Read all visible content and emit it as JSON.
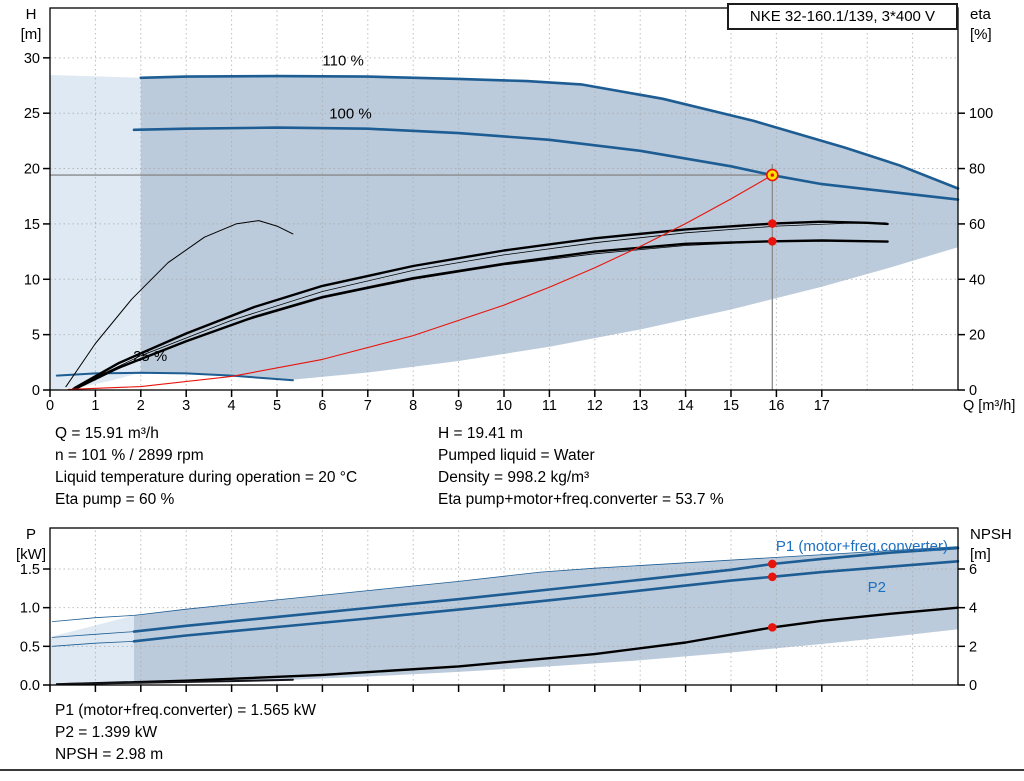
{
  "header": {
    "title_box": "NKE 32-160.1/139, 3*400 V"
  },
  "info_top_left": [
    "Q = 15.91 m³/h",
    "n = 101 % / 2899 rpm",
    "Liquid temperature during operation = 20 °C",
    "Eta pump = 60 %"
  ],
  "info_top_right": [
    "H = 19.41 m",
    "Pumped liquid = Water",
    "Density = 998.2 kg/m³",
    "Eta pump+motor+freq.converter = 53.7 %"
  ],
  "info_bottom": [
    "P1 (motor+freq.converter) = 1.565 kW",
    "P2 = 1.399 kW",
    "NPSH = 2.98 m"
  ],
  "colors": {
    "curve_blue": "#1d5d93",
    "label_blue": "#1d6fc0",
    "envelope": "#bccbdb",
    "envelope_pale": "#dfe9f3",
    "red": "#e8140c",
    "gray_line": "#8a8a8a",
    "grid": "#a8a8a8",
    "black": "#000000",
    "point_fill": "#ffe000"
  },
  "chart_data": [
    {
      "name": "qh_chart",
      "type": "line",
      "x_label": "Q [m³/h]",
      "y_left_label": [
        "H",
        "[m]"
      ],
      "y_right_label": [
        "eta",
        "[%]"
      ],
      "x_range": [
        0,
        20
      ],
      "x_ticks": [
        0,
        1,
        2,
        3,
        4,
        5,
        6,
        7,
        8,
        9,
        10,
        11,
        12,
        13,
        14,
        15,
        16,
        17
      ],
      "y_left_range": [
        0,
        34.5
      ],
      "y_left_ticks": [
        0,
        5,
        10,
        15,
        20,
        25,
        30
      ],
      "y_right_range": [
        0,
        138
      ],
      "y_right_ticks": [
        0,
        20,
        40,
        60,
        80,
        100
      ],
      "right_axis_factor": 0.25,
      "operating_point": {
        "q": 15.91,
        "h": 19.41
      },
      "crosshair": {
        "q": 15.91,
        "h": 19.41,
        "v_top": 20.4
      },
      "marker_points": [
        [
          15.91,
          15.03
        ],
        [
          15.91,
          13.43
        ]
      ],
      "curve_labels": [
        {
          "text": "110 %",
          "q": 6.0,
          "h": 29.3
        },
        {
          "text": "100 %",
          "q": 6.15,
          "h": 24.5
        },
        {
          "text": "25 %",
          "q": 1.83,
          "h": 2.6
        }
      ],
      "envelope_pale": [
        [
          0,
          0
        ],
        [
          0,
          28.45
        ],
        [
          2,
          28.2
        ],
        [
          2,
          1.55
        ],
        [
          1.3,
          0.8
        ],
        [
          0.6,
          0.2
        ],
        [
          0,
          0
        ]
      ],
      "envelope_main": [
        [
          2,
          28.2
        ],
        [
          3,
          28.3
        ],
        [
          5,
          28.35
        ],
        [
          7,
          28.3
        ],
        [
          9,
          28.1
        ],
        [
          10.5,
          27.9
        ],
        [
          11.7,
          27.6
        ],
        [
          13.5,
          26.3
        ],
        [
          15.5,
          24.3
        ],
        [
          17.5,
          21.9
        ],
        [
          18.7,
          20.3
        ],
        [
          20,
          18.2
        ],
        [
          20,
          12.9
        ],
        [
          18.5,
          11.05
        ],
        [
          17,
          9.33
        ],
        [
          15,
          7.27
        ],
        [
          13,
          5.46
        ],
        [
          11,
          3.9
        ],
        [
          9,
          2.62
        ],
        [
          7,
          1.58
        ],
        [
          5.3,
          0.91
        ],
        [
          4.5,
          1.1
        ],
        [
          3.5,
          1.4
        ],
        [
          2.5,
          1.53
        ],
        [
          2,
          1.55
        ]
      ],
      "series": [
        {
          "name": "speed-110-curve",
          "color": "curve_blue",
          "width": 2.6,
          "points": [
            [
              2,
              28.2
            ],
            [
              3,
              28.3
            ],
            [
              5,
              28.35
            ],
            [
              7,
              28.3
            ],
            [
              9,
              28.1
            ],
            [
              10.5,
              27.9
            ],
            [
              11.7,
              27.6
            ],
            [
              13.5,
              26.3
            ],
            [
              15.5,
              24.3
            ],
            [
              17.5,
              21.9
            ],
            [
              18.7,
              20.3
            ],
            [
              20,
              18.2
            ]
          ]
        },
        {
          "name": "speed-100-curve",
          "color": "curve_blue",
          "width": 2.6,
          "points": [
            [
              1.85,
              23.5
            ],
            [
              3,
              23.6
            ],
            [
              5,
              23.7
            ],
            [
              7,
              23.6
            ],
            [
              9,
              23.2
            ],
            [
              11,
              22.6
            ],
            [
              13,
              21.6
            ],
            [
              15,
              20.2
            ],
            [
              15.91,
              19.4
            ],
            [
              17,
              18.6
            ],
            [
              18.5,
              17.9
            ],
            [
              20,
              17.2
            ]
          ]
        },
        {
          "name": "speed-25-curve",
          "color": "curve_blue",
          "width": 2.0,
          "points": [
            [
              0.15,
              1.3
            ],
            [
              1,
              1.5
            ],
            [
              2,
              1.55
            ],
            [
              3,
              1.5
            ],
            [
              4,
              1.3
            ],
            [
              4.8,
              1.05
            ],
            [
              5.35,
              0.88
            ]
          ]
        },
        {
          "name": "eta-low-speed-curve",
          "color": "black",
          "width": 1.0,
          "points": [
            [
              0.35,
              0.3
            ],
            [
              1,
              4.2
            ],
            [
              1.8,
              8.2
            ],
            [
              2.6,
              11.5
            ],
            [
              3.4,
              13.8
            ],
            [
              4.1,
              15.0
            ],
            [
              4.6,
              15.3
            ],
            [
              5,
              14.8
            ],
            [
              5.35,
              14.1
            ]
          ]
        },
        {
          "name": "eta-thin-curve",
          "color": "black",
          "width": 0.8,
          "points": [
            [
              0.5,
              0.15
            ],
            [
              2,
              3.1
            ],
            [
              4,
              6.3
            ],
            [
              6,
              8.9
            ],
            [
              8,
              10.8
            ],
            [
              10,
              12.2
            ],
            [
              12,
              13.3
            ],
            [
              14,
              14.2
            ],
            [
              16,
              14.8
            ],
            [
              17.5,
              15.05
            ],
            [
              18.4,
              15.1
            ]
          ]
        },
        {
          "name": "eta-thin-curve-2",
          "color": "black",
          "width": 0.8,
          "points": [
            [
              0.5,
              0.1
            ],
            [
              2,
              2.8
            ],
            [
              4,
              5.9
            ],
            [
              6,
              8.3
            ],
            [
              8,
              10.0
            ],
            [
              10,
              11.3
            ],
            [
              12,
              12.3
            ],
            [
              14,
              13.05
            ],
            [
              15.5,
              13.35
            ],
            [
              16.5,
              13.45
            ]
          ]
        },
        {
          "name": "eta-pump-curve",
          "color": "black",
          "width": 2.4,
          "points": [
            [
              0.55,
              0.2
            ],
            [
              1.5,
              2.4
            ],
            [
              3,
              5.1
            ],
            [
              4.5,
              7.5
            ],
            [
              6,
              9.4
            ],
            [
              8,
              11.2
            ],
            [
              10,
              12.6
            ],
            [
              12,
              13.7
            ],
            [
              14,
              14.5
            ],
            [
              15.91,
              15.03
            ],
            [
              17,
              15.2
            ],
            [
              18,
              15.1
            ],
            [
              18.45,
              15.0
            ]
          ]
        },
        {
          "name": "eta-total-curve",
          "color": "black",
          "width": 2.4,
          "points": [
            [
              0.55,
              0.1
            ],
            [
              1.5,
              2.0
            ],
            [
              3,
              4.4
            ],
            [
              4.5,
              6.6
            ],
            [
              6,
              8.4
            ],
            [
              8,
              10.1
            ],
            [
              10,
              11.4
            ],
            [
              12,
              12.5
            ],
            [
              14,
              13.2
            ],
            [
              15.91,
              13.43
            ],
            [
              17,
              13.5
            ],
            [
              18.45,
              13.4
            ]
          ]
        },
        {
          "name": "system-curve",
          "color": "red",
          "width": 1.1,
          "points": [
            [
              0.4,
              0.05
            ],
            [
              2,
              0.31
            ],
            [
              4,
              1.23
            ],
            [
              6,
              2.76
            ],
            [
              8,
              4.91
            ],
            [
              10,
              7.67
            ],
            [
              11,
              9.28
            ],
            [
              12,
              11.04
            ],
            [
              13,
              12.96
            ],
            [
              14,
              15.03
            ],
            [
              15,
              17.26
            ],
            [
              15.91,
              19.41
            ]
          ]
        }
      ]
    },
    {
      "name": "power_npsh_chart",
      "type": "line",
      "x_label": "",
      "y_left_label": [
        "P",
        "[kW]"
      ],
      "y_right_label": [
        "NPSH",
        "[m]"
      ],
      "x_range": [
        0,
        20
      ],
      "x_ticks": [
        0,
        1,
        2,
        3,
        4,
        5,
        6,
        7,
        8,
        9,
        10,
        11,
        12,
        13,
        14,
        15,
        16,
        17
      ],
      "y_left_range": [
        0,
        2.03
      ],
      "y_left_ticks": [
        "0.0",
        "0.5",
        "1.0",
        "1.5"
      ],
      "y_right_range": [
        0,
        8.1
      ],
      "y_right_ticks": [
        0,
        2,
        4,
        6
      ],
      "right_axis_factor": 0.25,
      "marker_points": [
        [
          15.91,
          1.565
        ],
        [
          15.91,
          1.399
        ],
        [
          15.91,
          0.745
        ]
      ],
      "labels": [
        {
          "text": "P1 (motor+freq.converter)"
        },
        {
          "text": "P2"
        }
      ],
      "envelope_pale": [
        [
          0,
          0.005
        ],
        [
          0,
          0.62
        ],
        [
          1.85,
          0.9
        ],
        [
          1.85,
          0.028
        ],
        [
          0.9,
          0.015
        ],
        [
          0,
          0.005
        ]
      ],
      "envelope_main": [
        [
          1.85,
          0.9
        ],
        [
          3,
          0.98
        ],
        [
          5,
          1.1
        ],
        [
          7,
          1.22
        ],
        [
          9,
          1.34
        ],
        [
          10.8,
          1.46
        ],
        [
          12,
          1.51
        ],
        [
          14,
          1.58
        ],
        [
          16,
          1.65
        ],
        [
          18,
          1.72
        ],
        [
          20,
          1.79
        ],
        [
          20,
          0.72
        ],
        [
          18.5,
          0.62
        ],
        [
          17,
          0.53
        ],
        [
          15,
          0.42
        ],
        [
          13,
          0.32
        ],
        [
          11,
          0.24
        ],
        [
          9,
          0.17
        ],
        [
          7,
          0.11
        ],
        [
          5.35,
          0.068
        ],
        [
          4,
          0.05
        ],
        [
          2.6,
          0.036
        ],
        [
          1.85,
          0.028
        ]
      ],
      "series": [
        {
          "name": "power-envelope-top-line",
          "color": "curve_blue",
          "width": 0.8,
          "points": [
            [
              0.05,
              0.82
            ],
            [
              1,
              0.87
            ],
            [
              1.85,
              0.9
            ],
            [
              3,
              0.98
            ],
            [
              5,
              1.1
            ],
            [
              7,
              1.22
            ],
            [
              9,
              1.34
            ],
            [
              10.8,
              1.46
            ],
            [
              12,
              1.51
            ],
            [
              14,
              1.58
            ],
            [
              16,
              1.65
            ],
            [
              18,
              1.72
            ],
            [
              20,
              1.79
            ]
          ]
        },
        {
          "name": "p1-thin-left",
          "color": "curve_blue",
          "width": 0.8,
          "points": [
            [
              0.05,
              0.615
            ],
            [
              1,
              0.655
            ],
            [
              1.85,
              0.69
            ]
          ]
        },
        {
          "name": "p2-thin-left",
          "color": "curve_blue",
          "width": 0.8,
          "points": [
            [
              0.05,
              0.5
            ],
            [
              1,
              0.54
            ],
            [
              1.85,
              0.565
            ]
          ]
        },
        {
          "name": "p1-curve",
          "color": "curve_blue",
          "width": 2.6,
          "points": [
            [
              1.85,
              0.69
            ],
            [
              3,
              0.765
            ],
            [
              5,
              0.88
            ],
            [
              7,
              0.995
            ],
            [
              9,
              1.11
            ],
            [
              11,
              1.235
            ],
            [
              13,
              1.36
            ],
            [
              15,
              1.49
            ],
            [
              15.91,
              1.565
            ],
            [
              17,
              1.63
            ],
            [
              18.5,
              1.71
            ],
            [
              20,
              1.77
            ]
          ]
        },
        {
          "name": "p2-curve",
          "color": "curve_blue",
          "width": 2.6,
          "points": [
            [
              1.85,
              0.565
            ],
            [
              3,
              0.64
            ],
            [
              5,
              0.75
            ],
            [
              7,
              0.86
            ],
            [
              9,
              0.975
            ],
            [
              11,
              1.095
            ],
            [
              13,
              1.22
            ],
            [
              15,
              1.35
            ],
            [
              15.91,
              1.399
            ],
            [
              17,
              1.46
            ],
            [
              18.5,
              1.53
            ],
            [
              20,
              1.6
            ]
          ]
        },
        {
          "name": "npsh-curve",
          "color": "black",
          "width": 2.4,
          "points": [
            [
              0.3,
              0.01
            ],
            [
              3,
              0.055
            ],
            [
              6,
              0.13
            ],
            [
              9,
              0.24
            ],
            [
              12,
              0.4
            ],
            [
              14,
              0.55
            ],
            [
              15.91,
              0.745
            ],
            [
              17,
              0.83
            ],
            [
              18.5,
              0.92
            ],
            [
              20,
              1.0
            ]
          ]
        },
        {
          "name": "low-speed-power-curve",
          "color": "#13131a",
          "width": 2.0,
          "points": [
            [
              0.15,
              0.012
            ],
            [
              2,
              0.03
            ],
            [
              4,
              0.05
            ],
            [
              5.35,
              0.068
            ]
          ]
        }
      ]
    }
  ]
}
